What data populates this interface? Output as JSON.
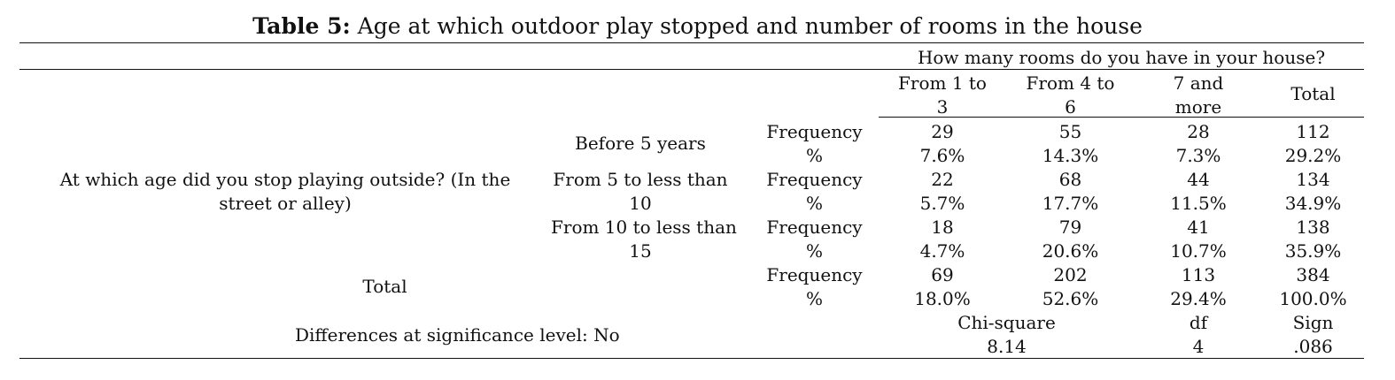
{
  "title": {
    "prefix": "Table 5:",
    "text": "Age at which outdoor play stopped and number of rooms in the house"
  },
  "header": {
    "spanner": "How many rooms do you have in your house?",
    "columns": [
      {
        "line1": "From 1 to",
        "line2": "3"
      },
      {
        "line1": "From 4 to",
        "line2": "6"
      },
      {
        "line1": "7 and",
        "line2": "more"
      },
      {
        "line1": "Total",
        "line2": ""
      }
    ]
  },
  "row_question": {
    "line1": "At which age did you stop playing outside? (In the",
    "line2": "street or alley)"
  },
  "groups": [
    {
      "label_line1": "Before 5 years",
      "label_line2": "",
      "freq_label": "Frequency",
      "pct_label": "%",
      "freq": [
        "29",
        "55",
        "28",
        "112"
      ],
      "pct": [
        "7.6%",
        "14.3%",
        "7.3%",
        "29.2%"
      ]
    },
    {
      "label_line1": "From 5 to less than",
      "label_line2": "10",
      "freq_label": "Frequency",
      "pct_label": "%",
      "freq": [
        "22",
        "68",
        "44",
        "134"
      ],
      "pct": [
        "5.7%",
        "17.7%",
        "11.5%",
        "34.9%"
      ]
    },
    {
      "label_line1": "From 10 to less than",
      "label_line2": "15",
      "freq_label": "Frequency",
      "pct_label": "%",
      "freq": [
        "18",
        "79",
        "41",
        "138"
      ],
      "pct": [
        "4.7%",
        "20.6%",
        "10.7%",
        "35.9%"
      ]
    }
  ],
  "total": {
    "label": "Total",
    "freq_label": "Frequency",
    "pct_label": "%",
    "freq": [
      "69",
      "202",
      "113",
      "384"
    ],
    "pct": [
      "18.0%",
      "52.6%",
      "29.4%",
      "100.0%"
    ]
  },
  "significance": {
    "label": "Differences at significance level: No",
    "chi_label": "Chi-square",
    "chi_value": "8.14",
    "df_label": "df",
    "df_value": "4",
    "sign_label": "Sign",
    "sign_value": ".086"
  }
}
